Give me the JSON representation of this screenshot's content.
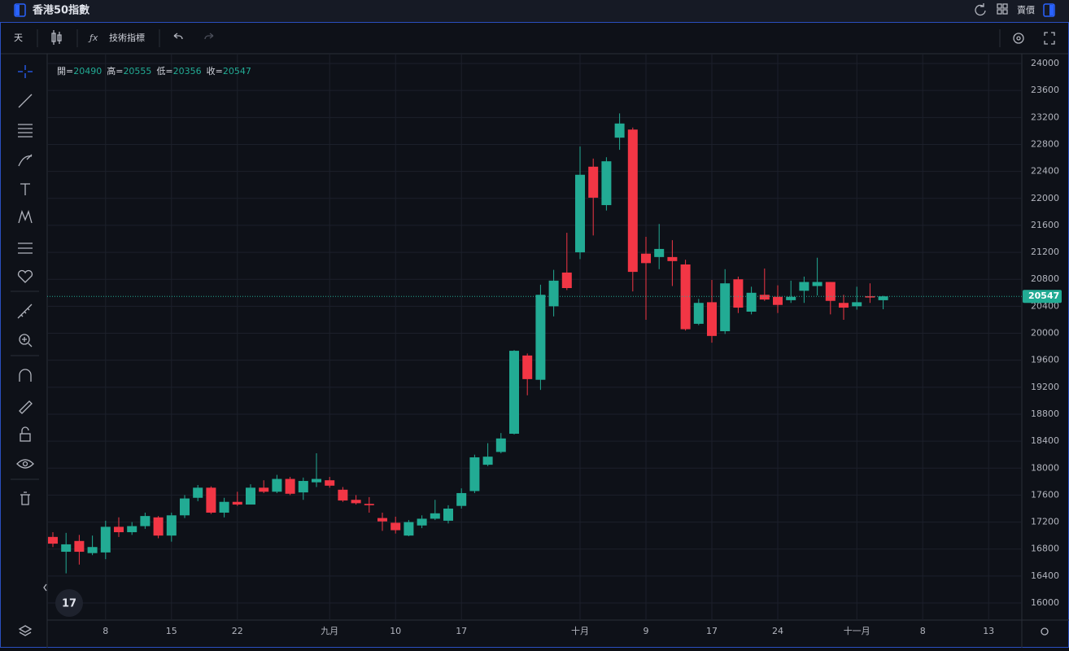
{
  "ui": {
    "title": "香港50指數",
    "interval": "天",
    "indicators": "技術指標",
    "price_type": "賣價",
    "legend": [
      {
        "label": "開=",
        "value": 20490
      },
      {
        "label": "高=",
        "value": 20555
      },
      {
        "label": "低=",
        "value": 20356
      },
      {
        "label": "收=",
        "value": 20547
      }
    ]
  },
  "chart_data": {
    "type": "candlestick",
    "categories": [
      null,
      null,
      null,
      null,
      "8",
      null,
      null,
      null,
      null,
      "15",
      null,
      null,
      null,
      null,
      "22",
      null,
      null,
      null,
      null,
      null,
      null,
      "九月",
      null,
      null,
      null,
      null,
      "10",
      null,
      null,
      null,
      null,
      "17",
      null,
      null,
      null,
      null,
      null,
      null,
      null,
      null,
      "十月",
      null,
      null,
      null,
      null,
      "9",
      null,
      null,
      null,
      null,
      "17",
      null,
      null,
      null,
      null,
      "24",
      null,
      null,
      null,
      null,
      null,
      "十一月",
      null,
      null,
      null,
      null,
      "8",
      null,
      null,
      null,
      null,
      "13"
    ],
    "open": [
      16980,
      16760,
      16920,
      16740,
      16750,
      17130,
      17050,
      17140,
      17270,
      17000,
      17300,
      17560,
      17710,
      17340,
      17500,
      17460,
      17710,
      17650,
      17840,
      17640,
      17790,
      17820,
      17680,
      17530,
      17470,
      17260,
      17190,
      17000,
      17150,
      17250,
      17220,
      17440,
      17660,
      18050,
      18240,
      18510,
      19670,
      19310,
      20400,
      20900,
      21200,
      22470,
      21900,
      22900,
      23020,
      21180,
      21130,
      21130,
      21020,
      20140,
      20460,
      20030,
      20800,
      20320,
      20570,
      20540,
      20490,
      20630,
      20700,
      20760,
      20450,
      20400,
      20550,
      20490,
      null,
      null,
      null,
      null,
      null,
      null,
      null,
      null
    ],
    "high": [
      17050,
      17040,
      17010,
      17000,
      17220,
      17270,
      17200,
      17340,
      17290,
      17340,
      17600,
      17750,
      17730,
      17560,
      17650,
      17760,
      17820,
      17900,
      17870,
      17860,
      18220,
      17870,
      17720,
      17600,
      17570,
      17340,
      17280,
      17230,
      17300,
      17530,
      17450,
      17700,
      18200,
      18370,
      18520,
      19750,
      19700,
      20720,
      20940,
      21490,
      22770,
      22590,
      22610,
      23260,
      23050,
      21430,
      21620,
      21380,
      21090,
      20510,
      20790,
      20950,
      20840,
      20690,
      20960,
      20710,
      20780,
      20840,
      21120,
      20760,
      20570,
      20690,
      20740,
      20555,
      null,
      null,
      null,
      null,
      null,
      null,
      null,
      null
    ],
    "low": [
      16830,
      16440,
      16570,
      16710,
      16650,
      16980,
      17010,
      17100,
      16960,
      16910,
      17260,
      17510,
      17320,
      17270,
      17440,
      17460,
      17630,
      17630,
      17600,
      17530,
      17720,
      17710,
      17500,
      17460,
      17340,
      17070,
      17030,
      16990,
      17110,
      17230,
      17180,
      17400,
      17630,
      18030,
      18220,
      18500,
      19080,
      19160,
      20250,
      20640,
      21100,
      21450,
      21820,
      22720,
      20620,
      20200,
      20950,
      20700,
      20040,
      20120,
      19860,
      19990,
      20300,
      20280,
      20480,
      20300,
      20450,
      20450,
      20560,
      20280,
      20200,
      20350,
      20450,
      20356,
      null,
      null,
      null,
      null,
      null,
      null,
      null,
      null
    ],
    "close": [
      16880,
      16870,
      16760,
      16830,
      17130,
      17050,
      17140,
      17290,
      17000,
      17300,
      17550,
      17710,
      17340,
      17500,
      17460,
      17710,
      17650,
      17840,
      17620,
      17810,
      17840,
      17740,
      17520,
      17480,
      17450,
      17210,
      17080,
      17200,
      17250,
      17330,
      17400,
      17630,
      18160,
      18170,
      18440,
      19740,
      19320,
      20570,
      20780,
      20670,
      22350,
      22010,
      22550,
      23110,
      20910,
      21040,
      21250,
      21070,
      20060,
      20450,
      19960,
      20740,
      20380,
      20600,
      20500,
      20420,
      20540,
      20760,
      20760,
      20480,
      20380,
      20460,
      20530,
      20547,
      null,
      null,
      null,
      null,
      null,
      null,
      null,
      null
    ],
    "up_color": "#22ab94",
    "down_color": "#f23645",
    "last_price": 20547,
    "ylim": [
      15747,
      24145
    ],
    "yticks": [
      16000,
      16400,
      16800,
      17200,
      17600,
      18000,
      18400,
      18800,
      19200,
      19600,
      20000,
      20400,
      20800,
      21200,
      21600,
      22000,
      22400,
      22800,
      23200,
      23600,
      24000
    ],
    "grid": true
  }
}
